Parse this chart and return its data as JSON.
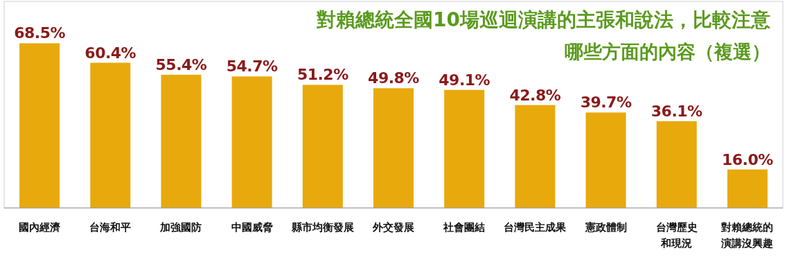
{
  "chart_data": {
    "type": "bar",
    "title": "對賴總統全國10場巡迴演講的主張和說法，比較注意",
    "subtitle": "哪些方面的內容（複選）",
    "categories": [
      "國內經濟",
      "台海和平",
      "加強國防",
      "中國威脅",
      "縣市均衡發展",
      "外交發展",
      "社會團結",
      "台灣民主成果",
      "憲政體制",
      "台灣歷史和現況",
      "對賴總統的演講沒興趣"
    ],
    "values": [
      68.5,
      60.4,
      55.4,
      54.7,
      51.2,
      49.8,
      49.1,
      42.8,
      39.7,
      36.1,
      16.0
    ],
    "value_labels": [
      "68.5%",
      "60.4%",
      "55.4%",
      "54.7%",
      "51.2%",
      "49.8%",
      "49.1%",
      "42.8%",
      "39.7%",
      "36.1%",
      "16.0%"
    ],
    "color": "#e8a90c"
  }
}
